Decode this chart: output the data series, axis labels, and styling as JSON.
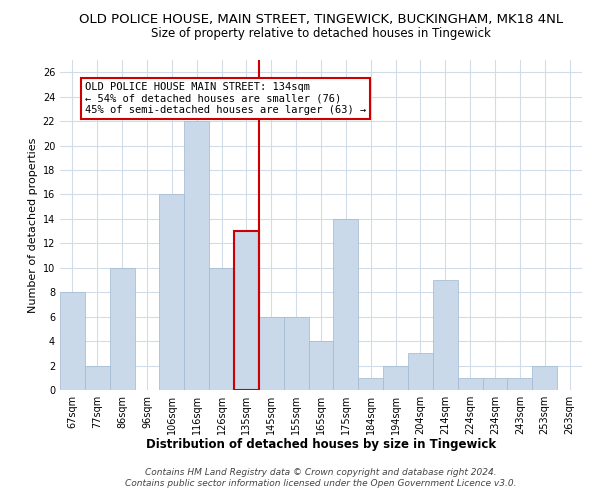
{
  "title": "OLD POLICE HOUSE, MAIN STREET, TINGEWICK, BUCKINGHAM, MK18 4NL",
  "subtitle": "Size of property relative to detached houses in Tingewick",
  "xlabel": "Distribution of detached houses by size in Tingewick",
  "ylabel": "Number of detached properties",
  "bar_labels": [
    "67sqm",
    "77sqm",
    "86sqm",
    "96sqm",
    "106sqm",
    "116sqm",
    "126sqm",
    "135sqm",
    "145sqm",
    "155sqm",
    "165sqm",
    "175sqm",
    "184sqm",
    "194sqm",
    "204sqm",
    "214sqm",
    "224sqm",
    "234sqm",
    "243sqm",
    "253sqm",
    "263sqm"
  ],
  "bar_values": [
    8,
    2,
    10,
    0,
    16,
    22,
    10,
    13,
    6,
    6,
    4,
    14,
    1,
    2,
    3,
    9,
    1,
    1,
    1,
    2,
    0
  ],
  "bar_color": "#c9d9ea",
  "bar_edge_color": "#a0b8d0",
  "highlight_index": 7,
  "highlight_color": "#cc0000",
  "annotation_title": "OLD POLICE HOUSE MAIN STREET: 134sqm",
  "annotation_line1": "← 54% of detached houses are smaller (76)",
  "annotation_line2": "45% of semi-detached houses are larger (63) →",
  "annotation_box_color": "#ffffff",
  "annotation_box_edge": "#cc0000",
  "ylim": [
    0,
    27
  ],
  "yticks": [
    0,
    2,
    4,
    6,
    8,
    10,
    12,
    14,
    16,
    18,
    20,
    22,
    24,
    26
  ],
  "footer_line1": "Contains HM Land Registry data © Crown copyright and database right 2024.",
  "footer_line2": "Contains public sector information licensed under the Open Government Licence v3.0.",
  "bg_color": "#ffffff",
  "grid_color": "#d0dde8",
  "title_fontsize": 9.5,
  "subtitle_fontsize": 8.5,
  "xlabel_fontsize": 8.5,
  "ylabel_fontsize": 8,
  "tick_fontsize": 7,
  "annotation_fontsize": 7.5,
  "footer_fontsize": 6.5
}
